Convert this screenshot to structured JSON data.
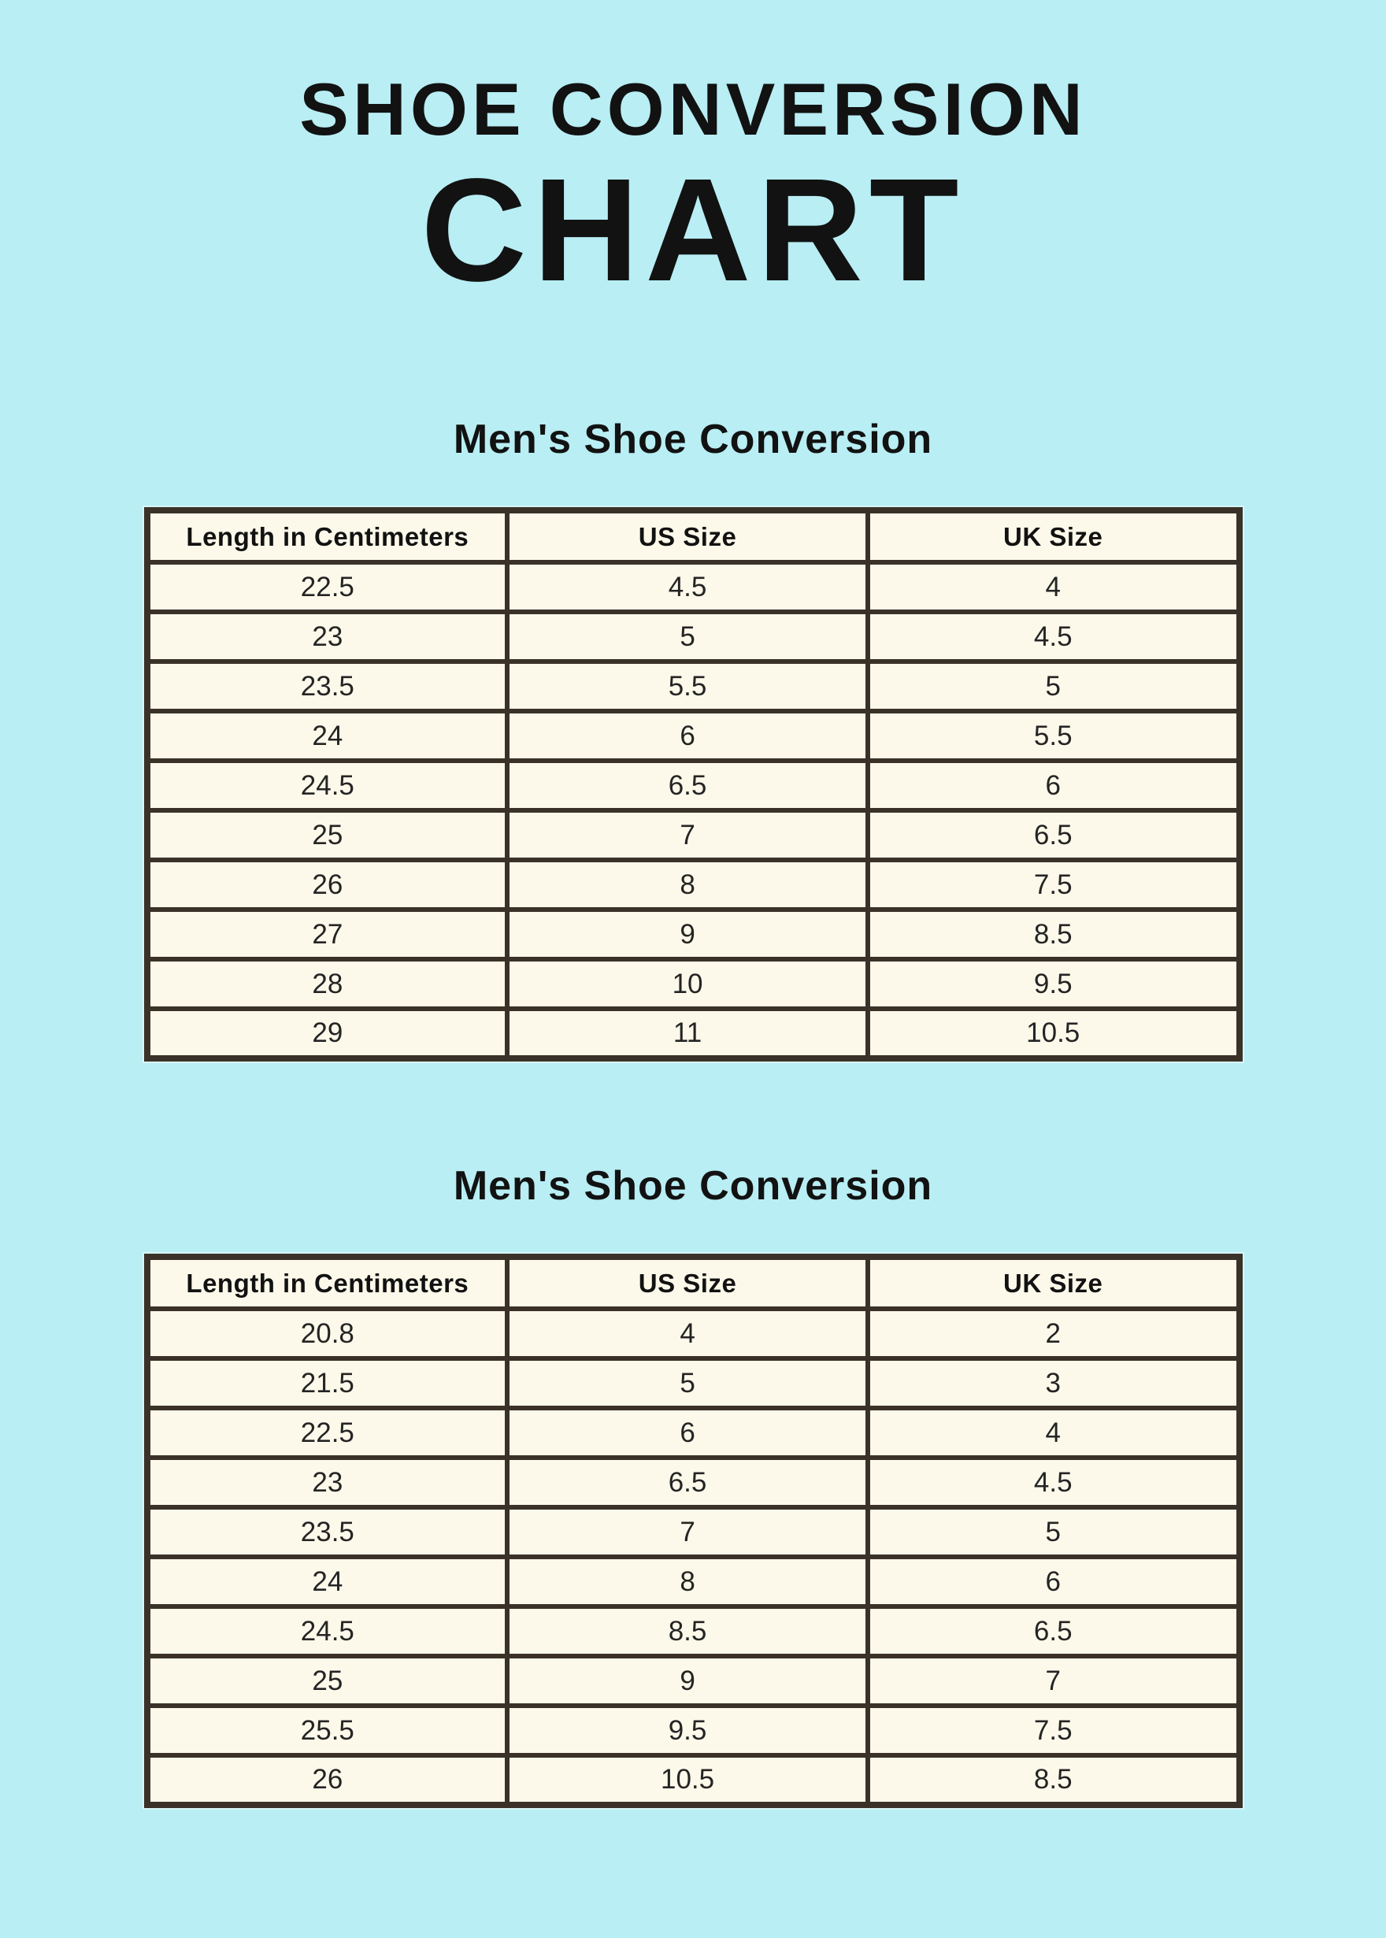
{
  "page_title": {
    "line1": "SHOE CONVERSION",
    "line2": "CHART"
  },
  "colors": {
    "background": "#b8eef4",
    "cell_background": "#fdf9ea",
    "table_border": "#3a3228",
    "title_text": "#121212"
  },
  "chart_data": [
    {
      "type": "table",
      "title": "Men's Shoe Conversion",
      "columns": [
        "Length in Centimeters",
        "US Size",
        "UK Size"
      ],
      "rows": [
        [
          "22.5",
          "4.5",
          "4"
        ],
        [
          "23",
          "5",
          "4.5"
        ],
        [
          "23.5",
          "5.5",
          "5"
        ],
        [
          "24",
          "6",
          "5.5"
        ],
        [
          "24.5",
          "6.5",
          "6"
        ],
        [
          "25",
          "7",
          "6.5"
        ],
        [
          "26",
          "8",
          "7.5"
        ],
        [
          "27",
          "9",
          "8.5"
        ],
        [
          "28",
          "10",
          "9.5"
        ],
        [
          "29",
          "11",
          "10.5"
        ]
      ]
    },
    {
      "type": "table",
      "title": "Men's Shoe Conversion",
      "columns": [
        "Length in Centimeters",
        "US Size",
        "UK Size"
      ],
      "rows": [
        [
          "20.8",
          "4",
          "2"
        ],
        [
          "21.5",
          "5",
          "3"
        ],
        [
          "22.5",
          "6",
          "4"
        ],
        [
          "23",
          "6.5",
          "4.5"
        ],
        [
          "23.5",
          "7",
          "5"
        ],
        [
          "24",
          "8",
          "6"
        ],
        [
          "24.5",
          "8.5",
          "6.5"
        ],
        [
          "25",
          "9",
          "7"
        ],
        [
          "25.5",
          "9.5",
          "7.5"
        ],
        [
          "26",
          "10.5",
          "8.5"
        ]
      ]
    }
  ]
}
